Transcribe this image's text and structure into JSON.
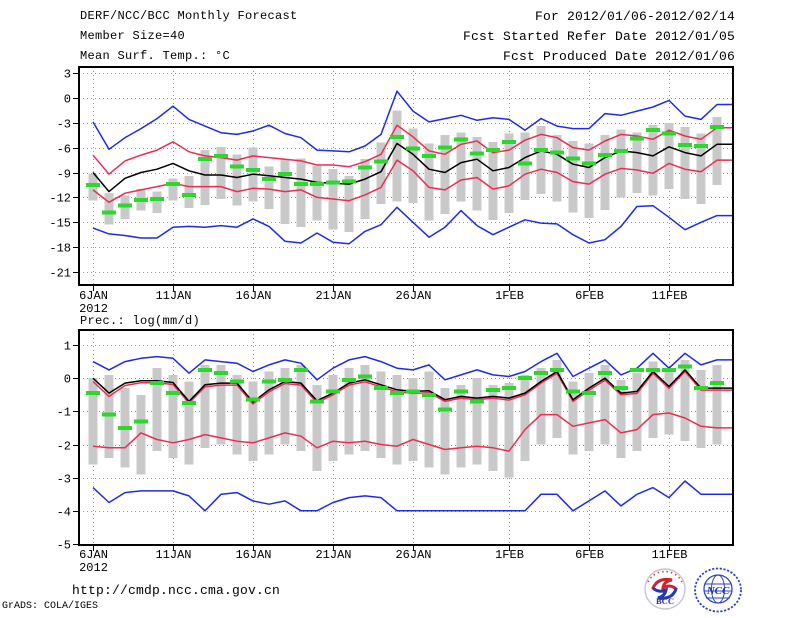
{
  "header": {
    "title": "DERF/NCC/BCC Monthly Forecast",
    "member_size": "Member Size=40",
    "forecast_range": "For 2012/01/06-2012/02/14",
    "refer_date": "Fcst Started Refer Date 2012/01/05",
    "produced_date": "Fcst Produced Date 2012/01/06"
  },
  "footer": {
    "url": "http://cmdp.ncc.cma.gov.cn",
    "grads_credit": "GrADS: COLA/IGES",
    "bcc_logo_text": "BCC",
    "ncc_logo_text": "NCC"
  },
  "colors": {
    "ensemble_line_blue": "#1c2ce8",
    "quartile_line_red": "#ee2c50",
    "mean_line_black": "#000000",
    "observation_green": "#2cd82c",
    "spread_bar_gray": "#c9c9c9",
    "grid_gray": "#979797",
    "frame_black": "#000000"
  },
  "chart_data": [
    {
      "type": "line",
      "title": "Mean Surf. Temp.: °C",
      "ylabel": "°C",
      "ylim": [
        -21,
        3
      ],
      "yticks": [
        3,
        0,
        -3,
        -6,
        -9,
        -12,
        -15,
        -18,
        -21
      ],
      "grid": true,
      "xticks": {
        "days": [
          1,
          6,
          11,
          16,
          21,
          27,
          32,
          37
        ],
        "labels": [
          "6JAN",
          "11JAN",
          "16JAN",
          "21JAN",
          "26JAN",
          "1FEB",
          "6FEB",
          "11FEB"
        ],
        "year": "2012"
      },
      "series": [
        {
          "name": "ensemble-max",
          "color": "#1c2ce8",
          "values": [
            -2.9,
            -6.2,
            -4.8,
            -3.7,
            -2.5,
            -1.0,
            -2.6,
            -3.4,
            -4.2,
            -4.4,
            -4.0,
            -3.3,
            -4.3,
            -4.8,
            -6.3,
            -6.4,
            -6.5,
            -5.8,
            -4.4,
            0.8,
            -1.6,
            -2.9,
            -2.5,
            -2.1,
            -2.7,
            -2.4,
            -2.6,
            -3.9,
            -2.5,
            -3.4,
            -3.7,
            -3.7,
            -1.9,
            -2.1,
            -1.6,
            -1.1,
            -0.3,
            -2.2,
            -2.6,
            -0.8
          ]
        },
        {
          "name": "upper-quartile",
          "color": "#ee2c50",
          "values": [
            -6.9,
            -9.2,
            -7.6,
            -6.9,
            -6.3,
            -5.3,
            -6.5,
            -7.0,
            -7.2,
            -7.5,
            -7.0,
            -7.2,
            -7.4,
            -7.6,
            -8.1,
            -8.1,
            -8.3,
            -7.7,
            -6.8,
            -3.3,
            -4.7,
            -6.4,
            -6.8,
            -5.6,
            -5.2,
            -6.6,
            -6.3,
            -5.1,
            -4.4,
            -4.8,
            -6.0,
            -6.3,
            -5.2,
            -4.4,
            -4.6,
            -5.0,
            -3.9,
            -4.6,
            -5.0,
            -3.6
          ]
        },
        {
          "name": "ensemble-mean",
          "color": "#000000",
          "values": [
            -9.0,
            -11.3,
            -9.7,
            -9.0,
            -8.6,
            -7.9,
            -8.8,
            -9.3,
            -9.3,
            -9.6,
            -9.2,
            -9.4,
            -9.6,
            -9.8,
            -10.2,
            -10.3,
            -10.4,
            -9.8,
            -8.9,
            -5.5,
            -6.8,
            -8.6,
            -9.0,
            -7.8,
            -7.4,
            -8.8,
            -8.4,
            -7.2,
            -6.4,
            -6.8,
            -8.0,
            -8.4,
            -7.2,
            -6.4,
            -6.6,
            -7.0,
            -5.9,
            -6.6,
            -7.0,
            -5.6
          ]
        },
        {
          "name": "lower-quartile",
          "color": "#ee2c50",
          "values": [
            -11.1,
            -12.6,
            -11.5,
            -11.1,
            -10.7,
            -10.3,
            -10.7,
            -10.7,
            -10.7,
            -11.3,
            -10.9,
            -11.0,
            -11.3,
            -11.1,
            -12.0,
            -12.2,
            -12.4,
            -11.7,
            -10.8,
            -7.5,
            -8.8,
            -10.8,
            -11.1,
            -9.9,
            -9.6,
            -11.0,
            -10.6,
            -9.2,
            -8.6,
            -9.0,
            -10.1,
            -10.4,
            -9.2,
            -8.5,
            -8.7,
            -9.1,
            -7.9,
            -8.6,
            -8.9,
            -7.5
          ]
        },
        {
          "name": "ensemble-min",
          "color": "#1c2ce8",
          "values": [
            -15.7,
            -16.4,
            -16.6,
            -16.9,
            -16.9,
            -15.6,
            -15.5,
            -15.6,
            -15.4,
            -15.6,
            -14.6,
            -15.5,
            -17.3,
            -17.5,
            -16.3,
            -17.4,
            -17.6,
            -16.1,
            -15.3,
            -13.2,
            -15.0,
            -16.8,
            -15.6,
            -13.6,
            -15.4,
            -16.5,
            -15.6,
            -14.7,
            -15.1,
            -15.2,
            -16.5,
            -17.5,
            -17.1,
            -15.5,
            -13.1,
            -13.0,
            -14.4,
            -15.9,
            -15.0,
            -14.2
          ]
        }
      ],
      "observation": {
        "name": "observation",
        "color": "#2cd82c",
        "values": [
          -10.5,
          -13.8,
          -13.0,
          -12.3,
          -12.2,
          -10.4,
          -11.7,
          -7.4,
          -7.0,
          -8.3,
          -8.7,
          -9.8,
          -9.2,
          -10.4,
          -10.4,
          -10.2,
          -10.1,
          -8.4,
          -7.7,
          -4.7,
          -6.1,
          -7.0,
          -6.0,
          -5.0,
          -6.7,
          -6.3,
          -5.3,
          -7.9,
          -6.3,
          -6.6,
          -7.3,
          -7.9,
          -6.9,
          -6.4,
          -4.9,
          -3.9,
          -4.3,
          -5.7,
          -5.8,
          -3.5
        ]
      },
      "spread_bars": {
        "name": "ensemble-spread",
        "color": "#c9c9c9",
        "high": [
          -9.2,
          -11.5,
          -11.8,
          -11.0,
          -11.3,
          -9.7,
          -9.4,
          -6.3,
          -5.9,
          -6.8,
          -6.0,
          -8.3,
          -7.4,
          -7.3,
          -8.2,
          -8.6,
          -9.4,
          -7.4,
          -5.4,
          -1.5,
          -3.7,
          -5.5,
          -4.5,
          -4.2,
          -4.7,
          -5.3,
          -4.3,
          -4.2,
          -3.4,
          -4.5,
          -5.2,
          -5.5,
          -4.5,
          -3.8,
          -4.2,
          -3.3,
          -3.0,
          -3.5,
          -4.3,
          -2.3
        ],
        "low": [
          -12.4,
          -15.3,
          -14.6,
          -13.6,
          -13.9,
          -12.4,
          -13.3,
          -12.9,
          -12.2,
          -13.0,
          -12.5,
          -13.4,
          -15.2,
          -15.6,
          -14.8,
          -15.9,
          -16.2,
          -14.6,
          -12.8,
          -12.5,
          -12.7,
          -14.8,
          -14.0,
          -12.5,
          -13.6,
          -14.7,
          -13.9,
          -12.3,
          -11.6,
          -12.5,
          -13.8,
          -14.5,
          -13.5,
          -12.0,
          -11.5,
          -11.8,
          -11.0,
          -12.2,
          -12.8,
          -10.5
        ]
      }
    },
    {
      "type": "line",
      "title": "Prec.: log(mm/d)",
      "ylabel": "log(mm/d)",
      "ylim": [
        -5,
        1
      ],
      "yticks": [
        1,
        0,
        -1,
        -2,
        -3,
        -4,
        -5
      ],
      "grid": true,
      "xticks": {
        "days": [
          1,
          6,
          11,
          16,
          21,
          27,
          32,
          37
        ],
        "labels": [
          "6JAN",
          "11JAN",
          "16JAN",
          "21JAN",
          "26JAN",
          "1FEB",
          "6FEB",
          "11FEB"
        ],
        "year": "2012"
      },
      "series": [
        {
          "name": "ensemble-max",
          "color": "#1c2ce8",
          "values": [
            0.5,
            0.25,
            0.5,
            0.6,
            0.65,
            0.6,
            0.15,
            0.55,
            0.5,
            0.45,
            0.2,
            0.4,
            0.55,
            0.45,
            -0.05,
            0.3,
            0.55,
            0.65,
            0.5,
            0.3,
            0.25,
            0.4,
            -0.05,
            0.1,
            0.25,
            0.1,
            0.05,
            0.2,
            0.5,
            0.75,
            0.05,
            0.3,
            0.55,
            0.1,
            0.3,
            0.75,
            0.3,
            0.75,
            0.4,
            0.55
          ]
        },
        {
          "name": "upper-quartile",
          "color": "#ee2c50",
          "values": [
            -0.1,
            -0.55,
            -0.22,
            -0.14,
            -0.14,
            -0.19,
            -0.75,
            -0.26,
            -0.21,
            -0.21,
            -0.78,
            -0.41,
            -0.16,
            -0.21,
            -0.74,
            -0.5,
            -0.21,
            -0.11,
            -0.26,
            -0.41,
            -0.46,
            -0.44,
            -0.7,
            -0.6,
            -0.65,
            -0.6,
            -0.66,
            -0.5,
            -0.15,
            0.15,
            -0.7,
            -0.36,
            -0.06,
            -0.5,
            -0.46,
            0.15,
            -0.31,
            0.2,
            -0.36,
            -0.36
          ]
        },
        {
          "name": "ensemble-mean",
          "color": "#000000",
          "values": [
            0.0,
            -0.45,
            -0.15,
            -0.08,
            -0.08,
            -0.13,
            -0.7,
            -0.2,
            -0.15,
            -0.15,
            -0.72,
            -0.35,
            -0.1,
            -0.15,
            -0.68,
            -0.45,
            -0.15,
            -0.05,
            -0.2,
            -0.35,
            -0.4,
            -0.38,
            -0.65,
            -0.55,
            -0.6,
            -0.55,
            -0.6,
            -0.45,
            -0.1,
            0.2,
            -0.65,
            -0.3,
            0.0,
            -0.45,
            -0.4,
            0.2,
            -0.25,
            0.25,
            -0.3,
            -0.3
          ]
        },
        {
          "name": "lower-quartile",
          "color": "#ee2c50",
          "values": [
            -2.05,
            -2.1,
            -2.1,
            -1.65,
            -1.85,
            -1.95,
            -1.85,
            -1.7,
            -1.8,
            -1.9,
            -1.95,
            -1.8,
            -1.65,
            -1.75,
            -2.1,
            -1.9,
            -1.95,
            -1.9,
            -2.0,
            -2.05,
            -1.85,
            -2.0,
            -2.15,
            -2.1,
            -2.05,
            -2.1,
            -2.2,
            -1.55,
            -1.1,
            -1.1,
            -1.45,
            -1.35,
            -1.25,
            -1.65,
            -1.55,
            -1.1,
            -1.05,
            -1.2,
            -1.45,
            -1.5
          ]
        },
        {
          "name": "ensemble-min",
          "color": "#1c2ce8",
          "values": [
            -3.3,
            -3.75,
            -3.45,
            -3.4,
            -3.4,
            -3.4,
            -3.55,
            -4.0,
            -3.5,
            -3.45,
            -3.7,
            -3.8,
            -3.7,
            -4.0,
            -4.0,
            -3.75,
            -3.6,
            -3.55,
            -3.6,
            -4.0,
            -4.0,
            -4.0,
            -4.0,
            -4.0,
            -4.0,
            -4.0,
            -4.0,
            -4.0,
            -3.5,
            -3.5,
            -4.0,
            -3.7,
            -3.4,
            -3.85,
            -3.5,
            -3.3,
            -3.6,
            -3.1,
            -3.5,
            -3.5
          ]
        }
      ],
      "observation": {
        "name": "observation",
        "color": "#2cd82c",
        "values": [
          -0.45,
          -1.1,
          -1.5,
          -1.3,
          -0.15,
          -0.45,
          -0.75,
          0.25,
          0.15,
          -0.1,
          -0.65,
          -0.1,
          -0.05,
          0.25,
          -0.7,
          -0.4,
          -0.05,
          0.05,
          -0.3,
          -0.45,
          -0.4,
          -0.5,
          -0.95,
          -0.4,
          -0.7,
          -0.35,
          -0.3,
          0.0,
          0.15,
          0.25,
          -0.4,
          -0.45,
          0.15,
          -0.3,
          0.25,
          0.25,
          0.25,
          0.35,
          -0.3,
          -0.15
        ]
      },
      "spread_bars": {
        "name": "ensemble-spread",
        "color": "#c9c9c9",
        "high": [
          0.0,
          0.1,
          -0.3,
          -0.5,
          0.3,
          0.1,
          -0.1,
          0.4,
          0.4,
          0.1,
          -0.1,
          0.2,
          0.3,
          0.4,
          -0.2,
          0.1,
          0.3,
          0.4,
          0.2,
          0.1,
          0.0,
          0.2,
          -0.3,
          -0.2,
          0.0,
          -0.2,
          -0.15,
          0.1,
          0.3,
          0.55,
          -0.1,
          0.15,
          0.4,
          -0.05,
          0.15,
          0.5,
          0.2,
          0.55,
          0.25,
          0.4
        ],
        "low": [
          -2.6,
          -2.4,
          -2.7,
          -2.9,
          -2.2,
          -2.4,
          -2.6,
          -2.1,
          -2.0,
          -2.3,
          -2.5,
          -2.3,
          -2.0,
          -2.2,
          -2.8,
          -2.5,
          -2.3,
          -2.2,
          -2.4,
          -2.6,
          -2.5,
          -2.7,
          -2.9,
          -2.7,
          -2.6,
          -2.8,
          -3.0,
          -2.5,
          -2.0,
          -1.8,
          -2.3,
          -2.2,
          -2.0,
          -2.4,
          -2.2,
          -1.8,
          -1.7,
          -1.9,
          -2.1,
          -2.0
        ]
      }
    }
  ]
}
